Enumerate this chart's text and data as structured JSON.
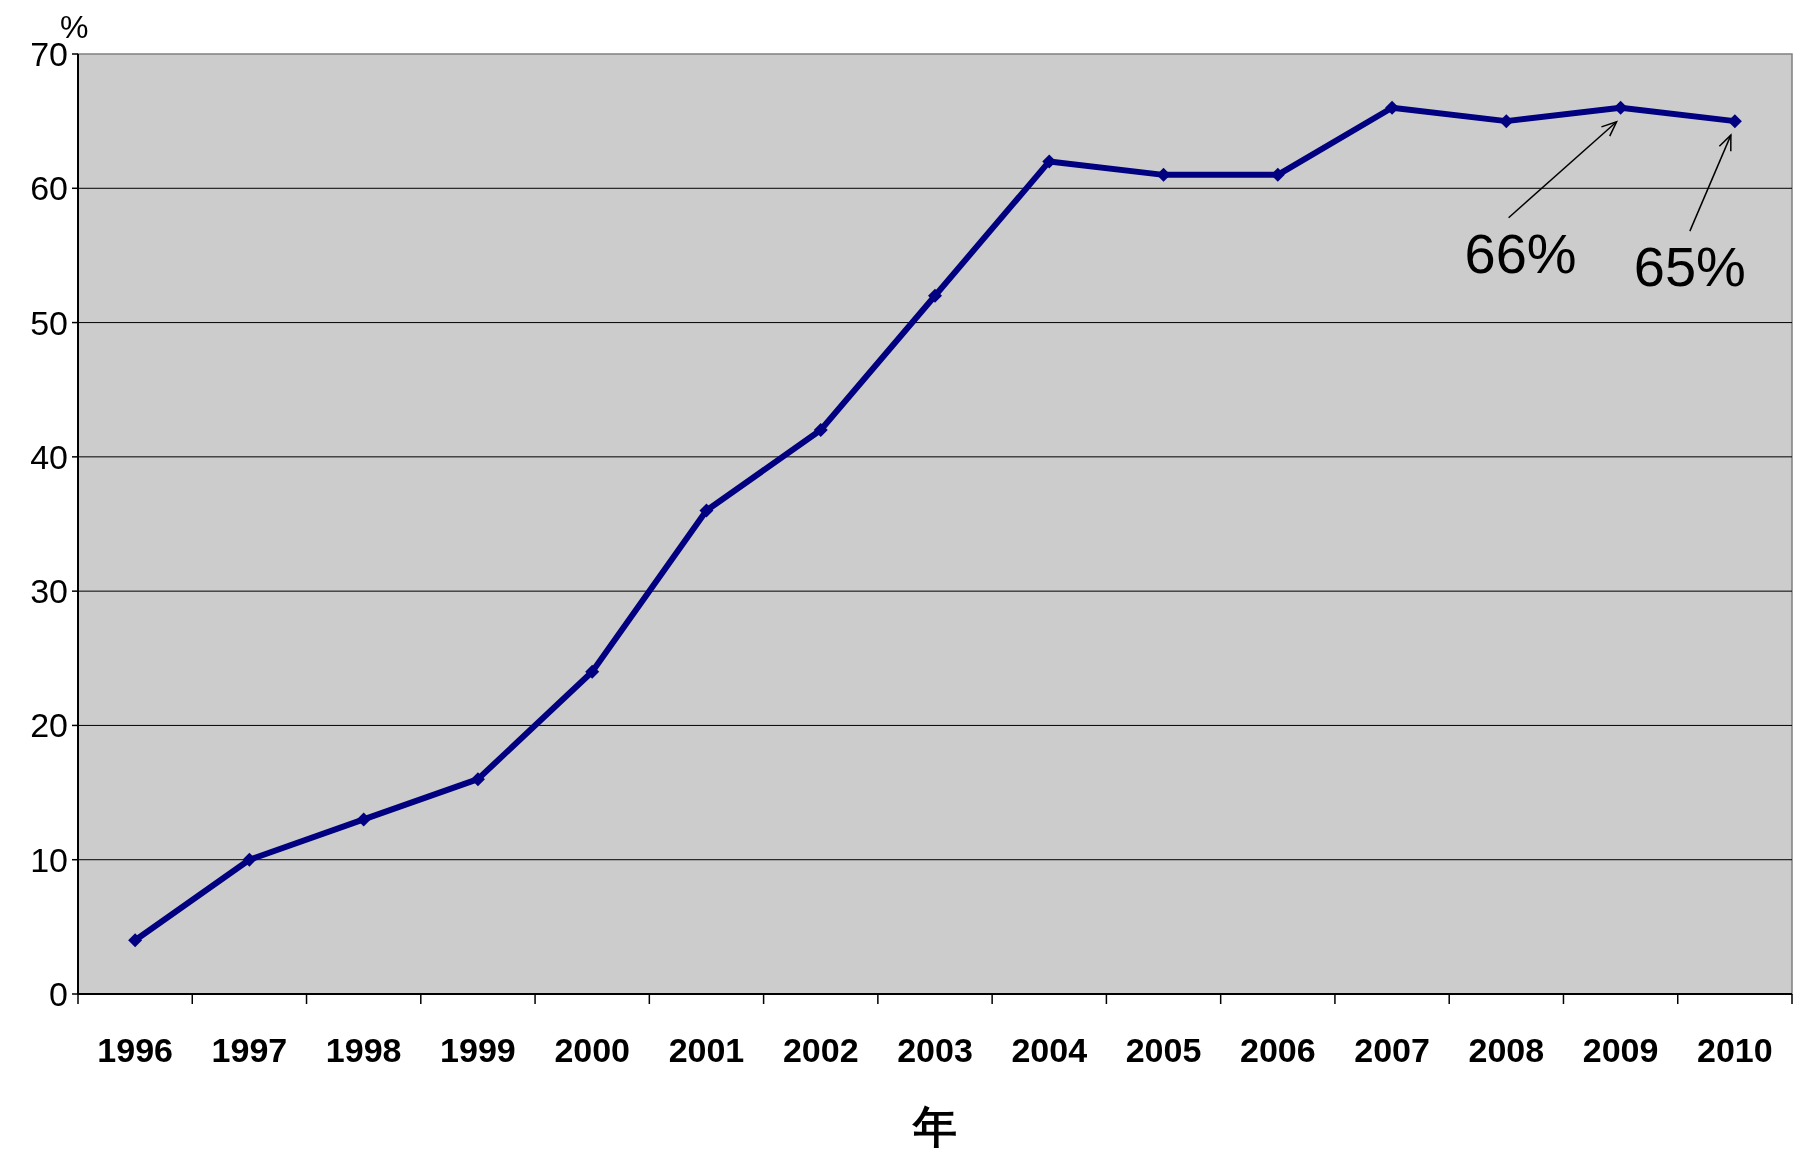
{
  "chart_data": {
    "type": "line",
    "categories": [
      "1996",
      "1997",
      "1998",
      "1999",
      "2000",
      "2001",
      "2002",
      "2003",
      "2004",
      "2005",
      "2006",
      "2007",
      "2008",
      "2009",
      "2010"
    ],
    "values": [
      4,
      10,
      13,
      16,
      24,
      36,
      42,
      52,
      62,
      61,
      61,
      66,
      65,
      66,
      65
    ],
    "color": "#000080",
    "xlabel": "年",
    "ylabel": "%",
    "ylim": [
      0,
      70
    ],
    "yticks": [
      0,
      10,
      20,
      30,
      40,
      50,
      60,
      70
    ],
    "grid": "y",
    "marker": "diamond",
    "line_style": "solid",
    "annotations": [
      {
        "text": "66%",
        "x": "2009",
        "y": 66
      },
      {
        "text": "65%",
        "x": "2010",
        "y": 65
      }
    ]
  }
}
